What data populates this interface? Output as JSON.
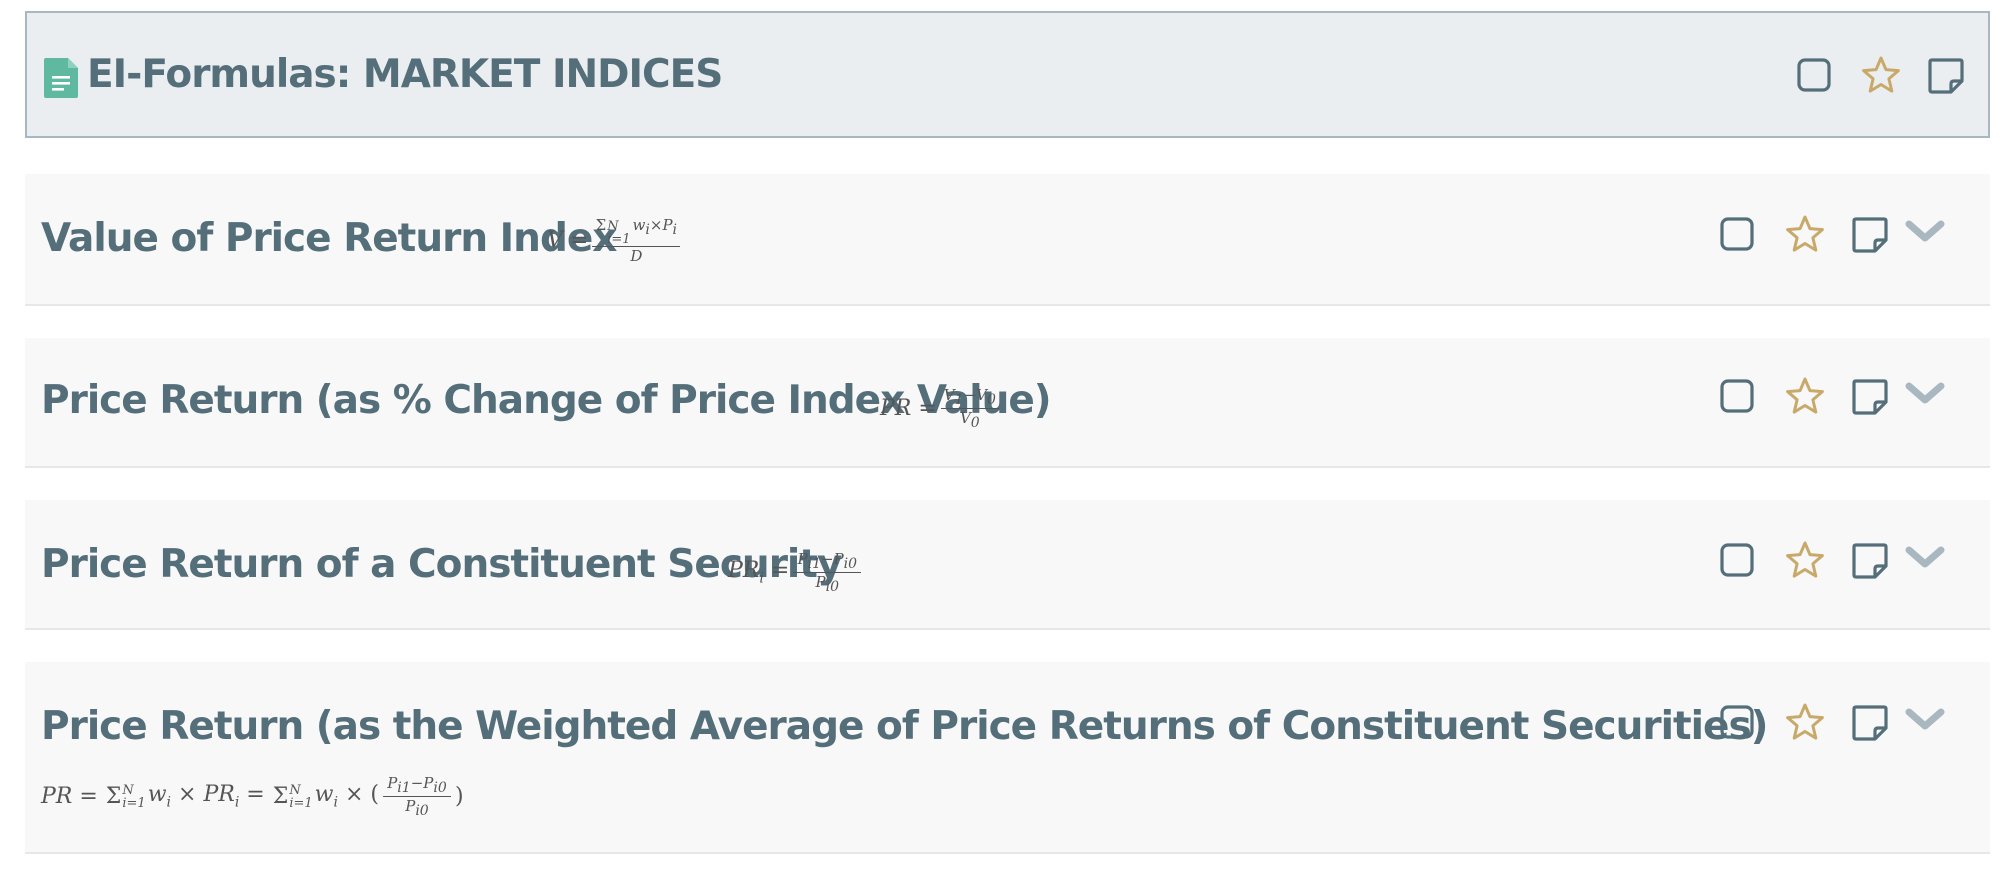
{
  "header": {
    "title": "EI-Formulas: MARKET INDICES",
    "icon": "document-icon"
  },
  "colors": {
    "title_text": "#546e7a",
    "header_bg": "#ebeef0",
    "header_border": "#a9b8c0",
    "card_bg": "#f8f8f8",
    "star": "#c8a96a",
    "chevron": "#a9b8c0",
    "doc_icon": "#5fb8a0"
  },
  "items": [
    {
      "title": "Value of Price Return Index",
      "formula_lhs": "V =",
      "formula_num": "Σ",
      "formula_num_rest": "w",
      "formula_den": "D"
    },
    {
      "title": "Price Return (as % Change of Price Index Value)",
      "formula_lhs": "PR =",
      "formula_num": "V₁−V₀",
      "formula_den": "V₀"
    },
    {
      "title": "Price Return of a Constituent Security",
      "formula_lhs": "PR",
      "formula_num": "Pᵢ₁−Pᵢ₀",
      "formula_den": "Pᵢ₀"
    },
    {
      "title": "Price Return (as the Weighted Average of Price Returns of Constituent Securities)",
      "formula_lhs": "PR =",
      "formula_num": "Pᵢ₁−Pᵢ₀",
      "formula_den": "Pᵢ₀"
    }
  ],
  "actions": {
    "checkbox_icon": "checkbox-icon",
    "star_icon": "star-icon",
    "note_icon": "note-icon",
    "chevron_icon": "chevron-down-icon"
  }
}
